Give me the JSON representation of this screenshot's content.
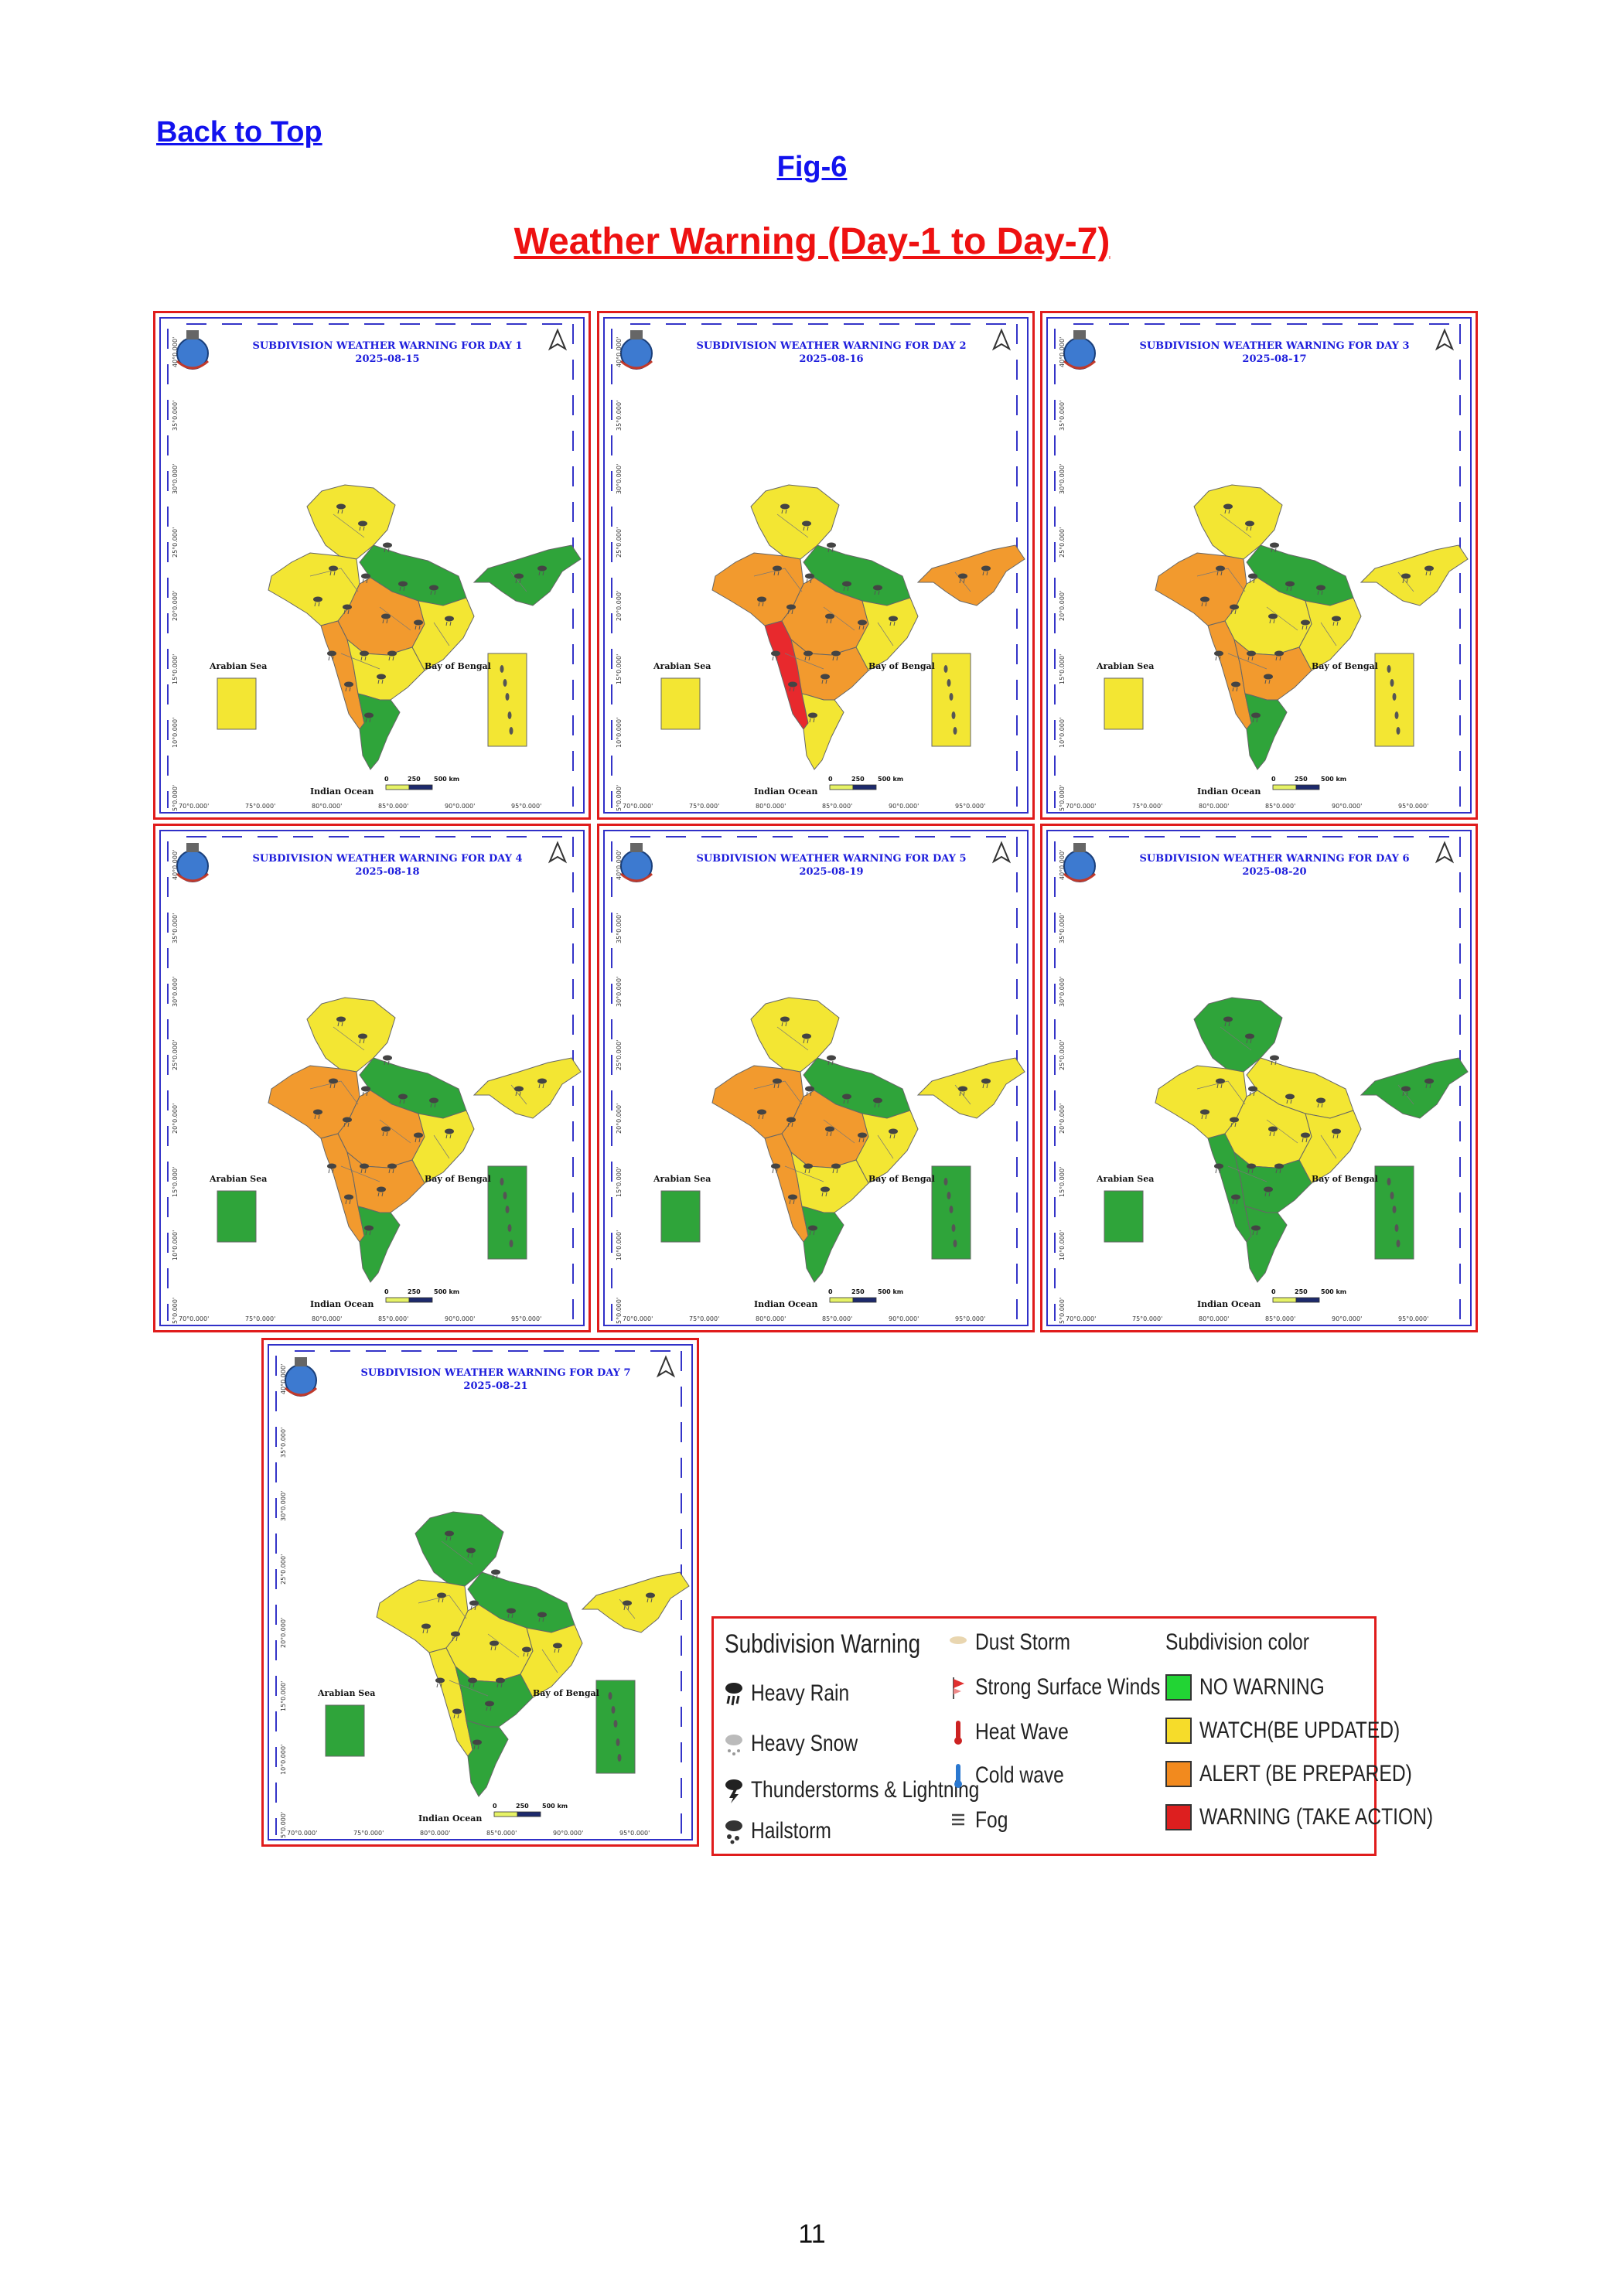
{
  "header": {
    "back_link": "Back to Top",
    "fig_link": "Fig-6",
    "title": "Weather Warning (Day-1 to Day-7)"
  },
  "colors": {
    "no_warning": "#2fa43a",
    "watch": "#f3e633",
    "alert": "#f29a2e",
    "warning": "#e8292d"
  },
  "map_common": {
    "arabian_sea": "Arabian Sea",
    "bay_of_bengal": "Bay of Bengal",
    "indian_ocean": "Indian Ocean",
    "scale_ticks": [
      "0",
      "250",
      "500 km"
    ],
    "lon_labels": [
      "70°0.000'",
      "75°0.000'",
      "80°0.000'",
      "85°0.000'",
      "90°0.000'",
      "95°0.000'"
    ],
    "lat_labels": [
      "40°0.000'",
      "35°0.000'",
      "30°0.000'",
      "25°0.000'",
      "20°0.000'",
      "15°0.000'",
      "10°0.000'",
      "5°0.000'"
    ]
  },
  "maps": [
    {
      "title": "SUBDIVISION WEATHER WARNING FOR DAY 1",
      "date": "2025-08-15",
      "islands": "watch",
      "regions": {
        "north": "watch",
        "northeast": "no_warning",
        "gangetic": "no_warning",
        "central": "alert",
        "west": "watch",
        "westcoast": "alert",
        "peninsula": "watch",
        "south": "no_warning",
        "east": "watch"
      }
    },
    {
      "title": "SUBDIVISION WEATHER WARNING FOR DAY 2",
      "date": "2025-08-16",
      "islands": "watch",
      "regions": {
        "north": "watch",
        "northeast": "alert",
        "gangetic": "no_warning",
        "central": "alert",
        "west": "alert",
        "westcoast": "warning",
        "peninsula": "alert",
        "south": "watch",
        "east": "watch"
      }
    },
    {
      "title": "SUBDIVISION WEATHER WARNING FOR DAY 3",
      "date": "2025-08-17",
      "islands": "watch",
      "regions": {
        "north": "watch",
        "northeast": "watch",
        "gangetic": "no_warning",
        "central": "watch",
        "west": "alert",
        "westcoast": "alert",
        "peninsula": "alert",
        "south": "no_warning",
        "east": "watch"
      }
    },
    {
      "title": "SUBDIVISION WEATHER WARNING FOR DAY 4",
      "date": "2025-08-18",
      "islands": "no_warning",
      "regions": {
        "north": "watch",
        "northeast": "watch",
        "gangetic": "no_warning",
        "central": "alert",
        "west": "alert",
        "westcoast": "alert",
        "peninsula": "alert",
        "south": "no_warning",
        "east": "watch"
      }
    },
    {
      "title": "SUBDIVISION WEATHER WARNING FOR DAY 5",
      "date": "2025-08-19",
      "islands": "no_warning",
      "regions": {
        "north": "watch",
        "northeast": "watch",
        "gangetic": "no_warning",
        "central": "alert",
        "west": "alert",
        "westcoast": "alert",
        "peninsula": "watch",
        "south": "no_warning",
        "east": "watch"
      }
    },
    {
      "title": "SUBDIVISION WEATHER WARNING FOR DAY 6",
      "date": "2025-08-20",
      "islands": "no_warning",
      "regions": {
        "north": "no_warning",
        "northeast": "no_warning",
        "gangetic": "watch",
        "central": "watch",
        "west": "watch",
        "westcoast": "no_warning",
        "peninsula": "no_warning",
        "south": "no_warning",
        "east": "watch"
      }
    },
    {
      "title": "SUBDIVISION WEATHER WARNING FOR DAY 7",
      "date": "2025-08-21",
      "islands": "no_warning",
      "regions": {
        "north": "no_warning",
        "northeast": "watch",
        "gangetic": "no_warning",
        "central": "watch",
        "west": "watch",
        "westcoast": "watch",
        "peninsula": "no_warning",
        "south": "no_warning",
        "east": "watch"
      }
    }
  ],
  "legend": {
    "subdivision_warning_title": "Subdivision Warning",
    "warnings_col1": [
      {
        "label": "Heavy Rain",
        "icon": "heavy-rain-icon"
      },
      {
        "label": "Heavy Snow",
        "icon": "heavy-snow-icon"
      },
      {
        "label": "Thunderstorms & Lightning",
        "icon": "thunderstorm-icon"
      },
      {
        "label": "Hailstorm",
        "icon": "hailstorm-icon"
      }
    ],
    "warnings_col2": [
      {
        "label": "Dust Storm",
        "icon": "dust-storm-icon"
      },
      {
        "label": "Strong Surface Winds",
        "icon": "strong-wind-icon"
      },
      {
        "label": "Heat Wave",
        "icon": "heat-wave-icon"
      },
      {
        "label": "Cold wave",
        "icon": "cold-wave-icon"
      },
      {
        "label": "Fog",
        "icon": "fog-icon"
      }
    ],
    "subdivision_color_title": "Subdivision color",
    "colors": [
      {
        "label": "NO WARNING",
        "color": "#22d434"
      },
      {
        "label": "WATCH(BE UPDATED)",
        "color": "#f6dc2a"
      },
      {
        "label": "ALERT (BE PREPARED)",
        "color": "#f28a1e"
      },
      {
        "label": "WARNING (TAKE ACTION)",
        "color": "#dd1f1f"
      }
    ]
  },
  "page_number": "11"
}
